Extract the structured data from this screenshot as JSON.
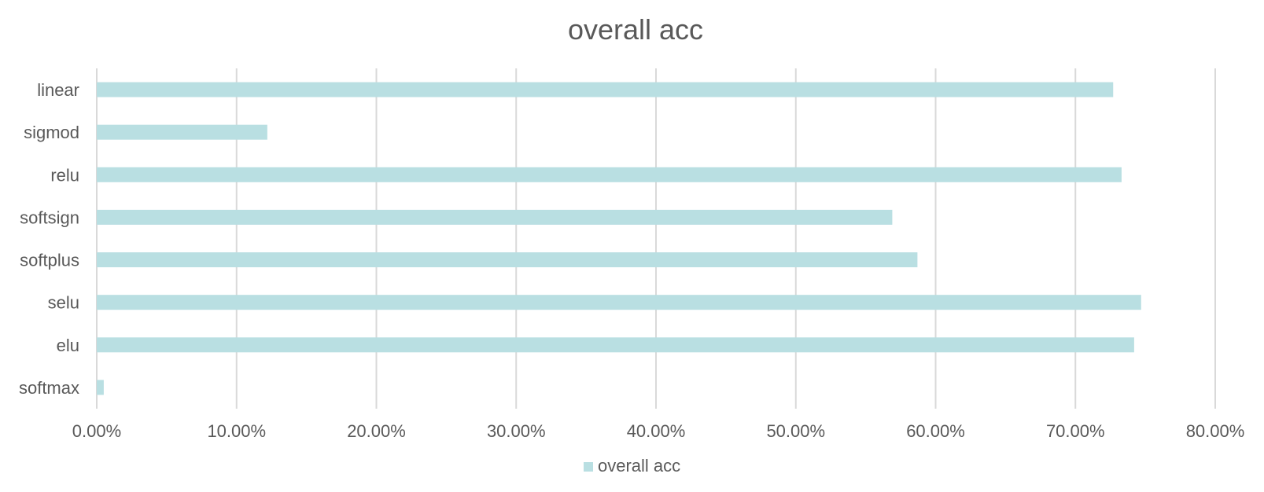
{
  "chart_data": {
    "type": "bar",
    "orientation": "horizontal",
    "title": "overall acc",
    "categories": [
      "linear",
      "sigmod",
      "relu",
      "softsign",
      "softplus",
      "selu",
      "elu",
      "softmax"
    ],
    "series": [
      {
        "name": "overall acc",
        "color": "#b9dfe2",
        "values": [
          72.7,
          12.2,
          73.3,
          56.9,
          58.7,
          74.7,
          74.2,
          0.5
        ]
      }
    ],
    "xlim": [
      0,
      80
    ],
    "xticks": [
      0,
      10,
      20,
      30,
      40,
      50,
      60,
      70,
      80
    ],
    "xtick_labels": [
      "0.00%",
      "10.00%",
      "20.00%",
      "30.00%",
      "40.00%",
      "50.00%",
      "60.00%",
      "70.00%",
      "80.00%"
    ],
    "xlabel": "",
    "ylabel": "",
    "grid": "vertical",
    "legend": "bottom"
  }
}
